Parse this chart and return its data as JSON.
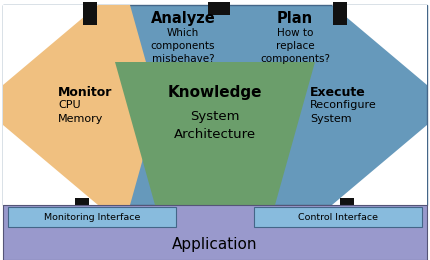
{
  "fig_width": 4.3,
  "fig_height": 2.6,
  "dpi": 100,
  "bg_color": "#ffffff",
  "blue_color": "#6699bb",
  "orange_color": "#f0c080",
  "green_color": "#6b9e6b",
  "app_color": "#9999cc",
  "interface_color": "#88bbdd",
  "black_color": "#111111",
  "white_color": "#ffffff",
  "analyze_title": "Analyze",
  "analyze_sub": "Which\ncomponents\nmisbehave?",
  "plan_title": "Plan",
  "plan_sub": "How to\nreplace\ncomponents?",
  "monitor_title": "Monitor",
  "monitor_sub": "CPU\nMemory",
  "execute_title": "Execute",
  "execute_sub": "Reconfigure\nSystem",
  "knowledge_title": "Knowledge",
  "knowledge_sub": "System\nArchitecture",
  "monitor_interface": "Monitoring Interface",
  "control_interface": "Control Interface",
  "application": "Application"
}
